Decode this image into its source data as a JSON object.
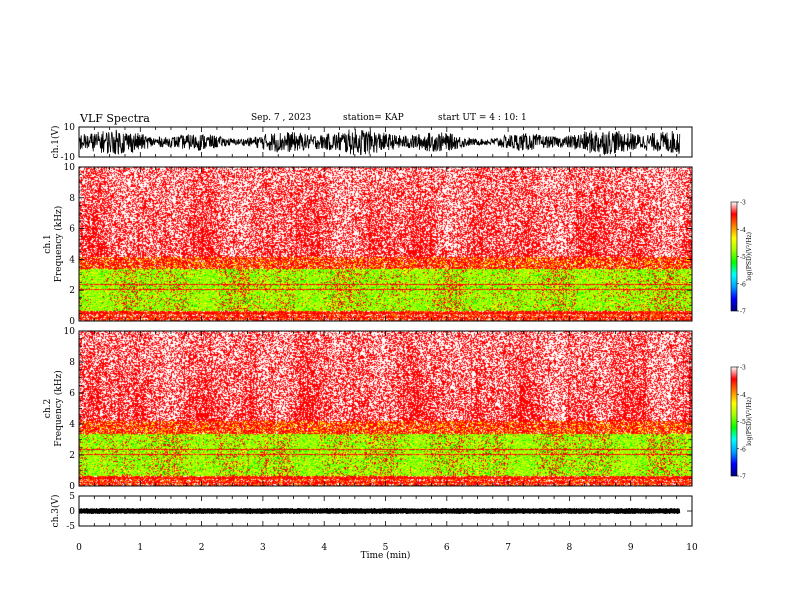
{
  "header": {
    "title": "VLF Spectra",
    "date": "Sep. 7 , 2023",
    "station": "station= KAP",
    "start_ut": "start UT =  4 : 10: 1"
  },
  "chart_data": [
    {
      "type": "line",
      "ylabel": "ch.1(V)",
      "ylim": [
        -10,
        10
      ],
      "yticks": [
        "10",
        "-10"
      ],
      "x_range_min": [
        0,
        9.8
      ]
    },
    {
      "type": "heatmap",
      "ylabel": "ch.1\nFrequency (kHz)",
      "ylim": [
        0,
        10
      ],
      "yticks": [
        "0",
        "2",
        "4",
        "6",
        "8",
        "10"
      ],
      "colorbar": {
        "label": "log(PSD)(V²/Hz)",
        "range": [
          -7,
          -3
        ],
        "ticks": [
          "-3",
          "-4",
          "-5",
          "-6",
          "-7"
        ]
      }
    },
    {
      "type": "heatmap",
      "ylabel": "ch.2\nFrequency (kHz)",
      "ylim": [
        0,
        10
      ],
      "yticks": [
        "0",
        "2",
        "4",
        "6",
        "8",
        "10"
      ],
      "colorbar": {
        "label": "log(PSD)(V²/Hz)",
        "range": [
          -7,
          -3
        ],
        "ticks": [
          "-3",
          "-4",
          "-5",
          "-6",
          "-7"
        ]
      }
    },
    {
      "type": "line",
      "ylabel": "ch.3(V)",
      "ylim": [
        -5,
        5
      ],
      "yticks": [
        "5",
        "0",
        "-5"
      ],
      "xlabel": "Time (min)",
      "xlim": [
        0,
        10
      ],
      "xticks": [
        "0",
        "1",
        "2",
        "3",
        "4",
        "5",
        "6",
        "7",
        "8",
        "9",
        "10"
      ]
    }
  ],
  "colors": {
    "colormap": [
      "#000080",
      "#0000ff",
      "#00a0ff",
      "#00ffff",
      "#00ff00",
      "#a0ff00",
      "#ffff00",
      "#ff8000",
      "#ff0000",
      "#ffffff"
    ],
    "trace": "#000000"
  }
}
